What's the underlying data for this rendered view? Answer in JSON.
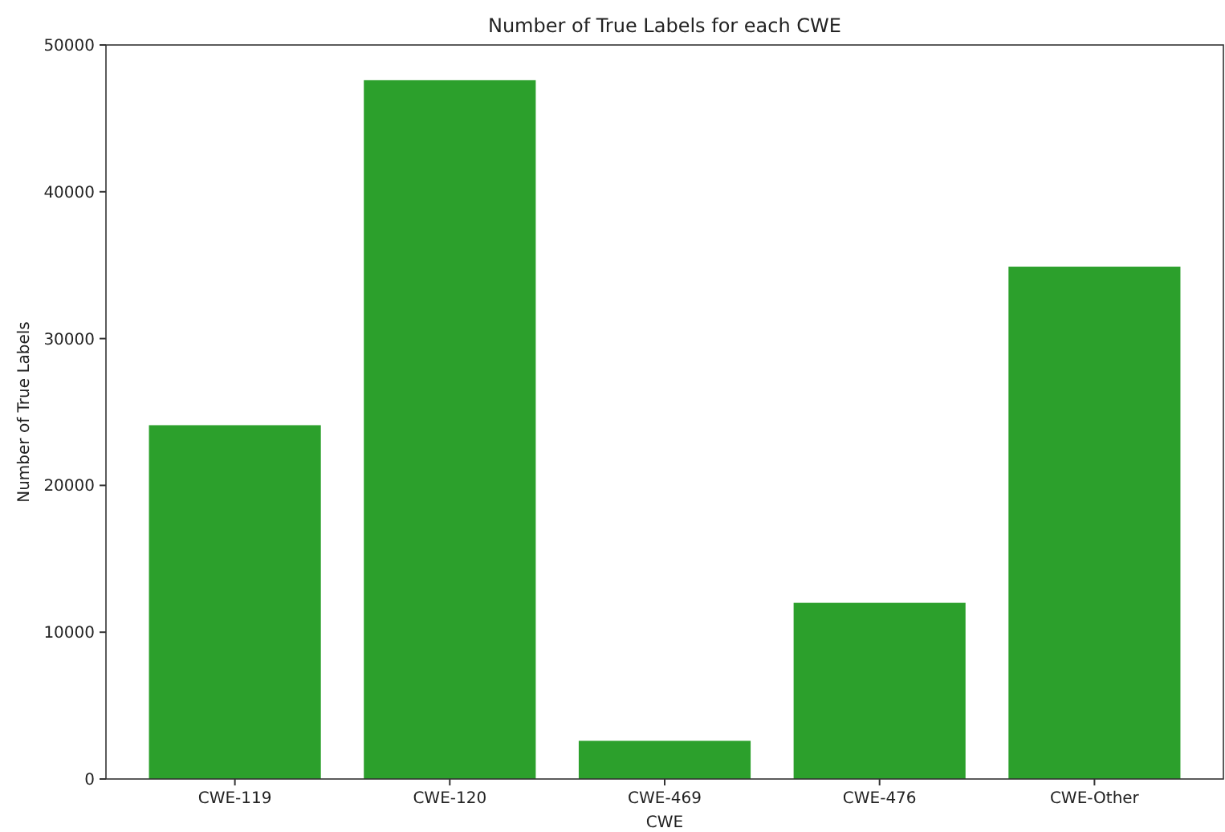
{
  "chart_data": {
    "type": "bar",
    "title": "Number of True Labels for each CWE",
    "xlabel": "CWE",
    "ylabel": "Number of True Labels",
    "categories": [
      "CWE-119",
      "CWE-120",
      "CWE-469",
      "CWE-476",
      "CWE-Other"
    ],
    "values": [
      24100,
      47600,
      2600,
      12000,
      34900
    ],
    "color": "#2ca02c",
    "ylim": [
      0,
      50000
    ],
    "yticks": [
      0,
      10000,
      20000,
      30000,
      40000,
      50000
    ],
    "grid": false
  }
}
